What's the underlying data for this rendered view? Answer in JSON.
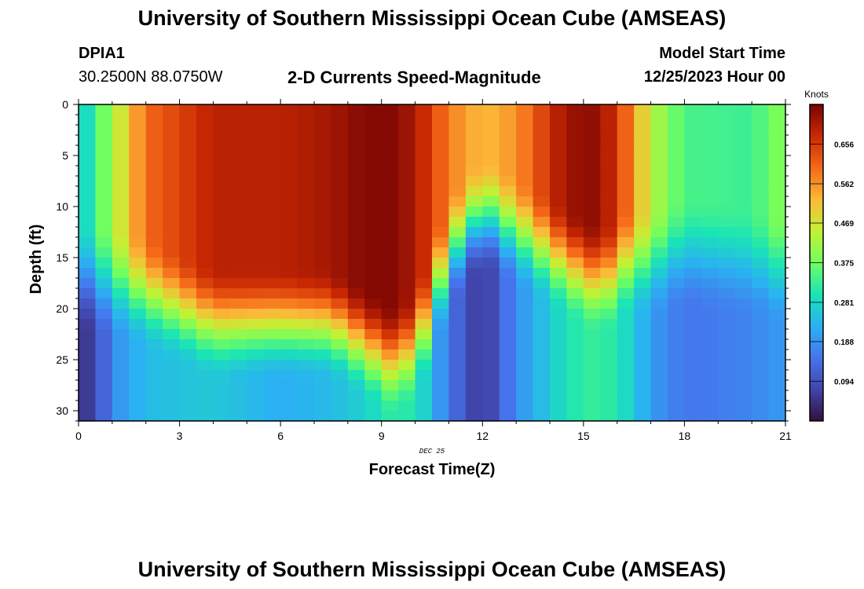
{
  "page": {
    "title": "University of Southern Mississippi Ocean Cube (AMSEAS)",
    "station_id": "DPIA1",
    "coordinates": "30.2500N  88.0750W",
    "subtitle": "2-D Currents Speed-Magnitude",
    "model_start_label": "Model Start Time",
    "model_start_value": "12/25/2023 Hour 00",
    "date_marker": "DEC 25",
    "footer_title": "University of Southern Mississippi Ocean Cube (AMSEAS)"
  },
  "chart_data": {
    "type": "heatmap",
    "title": "2-D Currents Speed-Magnitude",
    "xlabel": "Forecast Time(Z)",
    "ylabel": "Depth (ft)",
    "xlim": [
      0,
      21
    ],
    "ylim": [
      0,
      31
    ],
    "x_ticks": [
      0,
      3,
      6,
      9,
      12,
      15,
      18,
      21
    ],
    "y_ticks": [
      0,
      5,
      10,
      15,
      20,
      25,
      30
    ],
    "colorbar": {
      "label": "Knots",
      "min": 0.0,
      "max": 0.75,
      "tick_values": [
        0.094,
        0.188,
        0.281,
        0.375,
        0.469,
        0.562,
        0.656
      ],
      "tick_labels": [
        "0.094",
        "0.188",
        "0.281",
        "0.375",
        "0.469",
        "0.562",
        "0.656"
      ]
    },
    "grid": false,
    "description_of_field": "Current speed (knots) by forecast hour and depth; strong near-surface maxima around hours 3-7, 8-10 and 14-16, weak speeds near hours 0, 12 and 18-21 at depth.",
    "time_keypoints": [
      0,
      0.5,
      1,
      2,
      4,
      6,
      7.5,
      8.5,
      9.5,
      10.3,
      11,
      12,
      13,
      14.5,
      15.5,
      16.3,
      17,
      18,
      20,
      21
    ],
    "surface_speed": [
      0.25,
      0.33,
      0.42,
      0.6,
      0.69,
      0.69,
      0.71,
      0.74,
      0.74,
      0.67,
      0.58,
      0.52,
      0.56,
      0.72,
      0.73,
      0.6,
      0.44,
      0.34,
      0.33,
      0.4
    ],
    "bottom_speed": [
      0.05,
      0.07,
      0.18,
      0.24,
      0.26,
      0.22,
      0.24,
      0.27,
      0.33,
      0.27,
      0.15,
      0.05,
      0.18,
      0.3,
      0.33,
      0.28,
      0.2,
      0.15,
      0.17,
      0.2
    ],
    "transition_depth_ft": [
      16,
      17,
      17,
      18,
      21,
      21,
      21,
      23,
      25,
      21,
      14,
      10,
      12,
      15,
      17,
      15,
      15,
      14,
      15,
      16
    ]
  }
}
